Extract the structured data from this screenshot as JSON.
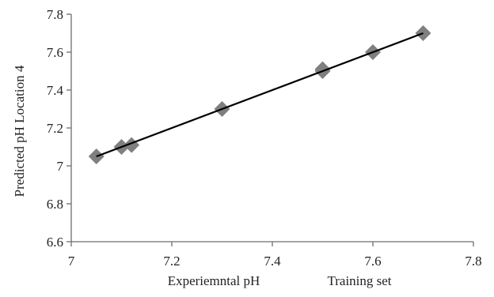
{
  "chart_data": {
    "type": "scatter",
    "title": "",
    "xlabel": "Experiemntal pH",
    "ylabel": "Predicted pH Location 4",
    "annotation": "Training set",
    "xlim": [
      7,
      7.8
    ],
    "ylim": [
      6.6,
      7.8
    ],
    "x_ticks": [
      7,
      7.2,
      7.4,
      7.6,
      7.8
    ],
    "y_ticks": [
      6.6,
      6.8,
      7,
      7.2,
      7.4,
      7.6,
      7.8
    ],
    "x_tick_labels": [
      "7",
      "7.2",
      "7.4",
      "7.6",
      "7.8"
    ],
    "y_tick_labels": [
      "6.6",
      "6.8",
      "7",
      "7.2",
      "7.4",
      "7.6",
      "7.8"
    ],
    "grid": false,
    "legend": "none",
    "marker": "diamond",
    "series": [
      {
        "points": [
          {
            "x": 7.05,
            "y": 7.05
          },
          {
            "x": 7.1,
            "y": 7.1
          },
          {
            "x": 7.12,
            "y": 7.11
          },
          {
            "x": 7.3,
            "y": 7.3
          },
          {
            "x": 7.5,
            "y": 7.5
          },
          {
            "x": 7.5,
            "y": 7.51
          },
          {
            "x": 7.6,
            "y": 7.6
          },
          {
            "x": 7.7,
            "y": 7.7
          }
        ]
      }
    ],
    "trendline": {
      "x": [
        7.05,
        7.7
      ],
      "y": [
        7.05,
        7.7
      ]
    },
    "colors": {
      "marker": "#7f7f7f",
      "trendline": "#000000",
      "axis": "#6e6e6e"
    }
  }
}
